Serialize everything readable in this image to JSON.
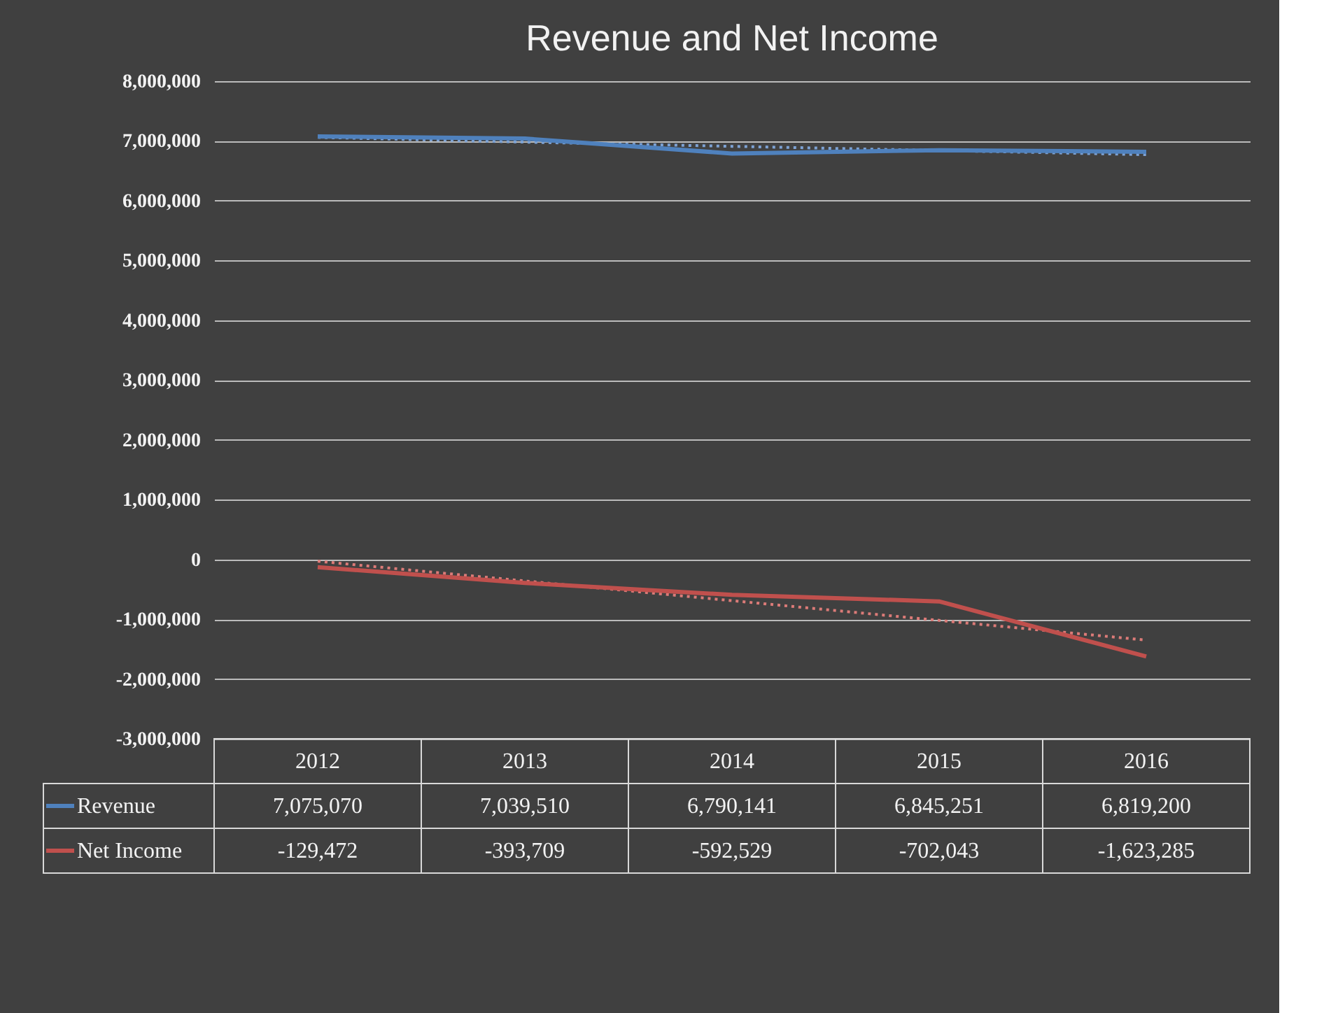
{
  "chart_data": {
    "type": "line",
    "title": "Revenue and Net Income",
    "categories": [
      "2012",
      "2013",
      "2014",
      "2015",
      "2016"
    ],
    "series": [
      {
        "name": "Revenue",
        "color": "#4f81bd",
        "line_style": "solid",
        "values": [
          7075070,
          7039510,
          6790141,
          6845251,
          6819200
        ],
        "value_labels": [
          "7,075,070",
          "7,039,510",
          "6,790,141",
          "6,845,251",
          "6,819,200"
        ]
      },
      {
        "name": "Net Income",
        "color": "#c0504d",
        "line_style": "solid",
        "values": [
          -129472,
          -393709,
          -592529,
          -702043,
          -1623285
        ],
        "value_labels": [
          "-129,472",
          "-393,709",
          "-592,529",
          "-702,043",
          "-1,623,285"
        ]
      },
      {
        "type": "line",
        "color": "#7da2d4",
        "line_style": "dotted",
        "values": [
          7060000,
          6980000,
          6910000,
          6840000,
          6770000
        ]
      },
      {
        "type": "line",
        "color": "#dc7b78",
        "line_style": "dotted",
        "values": [
          -30000,
          -360000,
          -690000,
          -1020000,
          -1350000
        ]
      }
    ],
    "ylim": [
      -3000000,
      8000000
    ],
    "yticks": [
      {
        "value": -3000000,
        "label": "-3,000,000"
      },
      {
        "value": -2000000,
        "label": "-2,000,000"
      },
      {
        "value": -1000000,
        "label": "-1,000,000"
      },
      {
        "value": 0,
        "label": "0"
      },
      {
        "value": 1000000,
        "label": "1,000,000"
      },
      {
        "value": 2000000,
        "label": "2,000,000"
      },
      {
        "value": 3000000,
        "label": "3,000,000"
      },
      {
        "value": 4000000,
        "label": "4,000,000"
      },
      {
        "value": 5000000,
        "label": "5,000,000"
      },
      {
        "value": 6000000,
        "label": "6,000,000"
      },
      {
        "value": 7000000,
        "label": "7,000,000"
      },
      {
        "value": 8000000,
        "label": "8,000,000"
      }
    ],
    "grid": "y",
    "legend": "bottom",
    "marker": "none"
  }
}
